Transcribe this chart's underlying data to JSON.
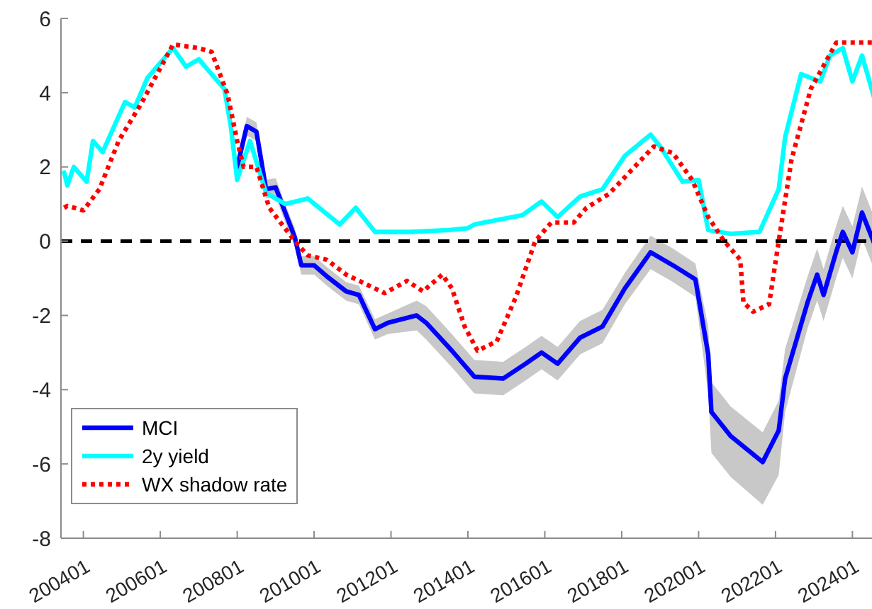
{
  "chart_data": {
    "type": "line",
    "xlim": [
      "2003-06",
      "2024-08"
    ],
    "ylim": [
      -8,
      6
    ],
    "yticks": [
      -8,
      -6,
      -4,
      -2,
      0,
      2,
      4,
      6
    ],
    "xticks": [
      {
        "value": "2004-01",
        "label": "200401"
      },
      {
        "value": "2006-01",
        "label": "200601"
      },
      {
        "value": "2008-01",
        "label": "200801"
      },
      {
        "value": "2010-01",
        "label": "201001"
      },
      {
        "value": "2012-01",
        "label": "201201"
      },
      {
        "value": "2014-01",
        "label": "201401"
      },
      {
        "value": "2016-01",
        "label": "201601"
      },
      {
        "value": "2018-01",
        "label": "201801"
      },
      {
        "value": "2020-01",
        "label": "202001"
      },
      {
        "value": "2022-01",
        "label": "202201"
      },
      {
        "value": "2024-01",
        "label": "202401"
      }
    ],
    "legend": "bottom left",
    "marker": "none",
    "ref_lines": [
      {
        "axis": "y",
        "value": 0,
        "color": "#000000",
        "line_style": "dashed"
      }
    ],
    "series": [
      {
        "name": "MCI",
        "color": "#0000ff",
        "line_style": "solid",
        "x": [
          "2008-01",
          "2008-04",
          "2008-07",
          "2008-10",
          "2009-01",
          "2009-04",
          "2009-07",
          "2009-09",
          "2010-01",
          "2010-05",
          "2010-11",
          "2011-03",
          "2011-08",
          "2011-12",
          "2012-09",
          "2012-12",
          "2013-08",
          "2014-03",
          "2014-12",
          "2015-07",
          "2015-12",
          "2016-05",
          "2016-12",
          "2017-07",
          "2018-02",
          "2018-10",
          "2019-05",
          "2019-12",
          "2020-04",
          "2020-05",
          "2020-11",
          "2021-09",
          "2022-02",
          "2022-04",
          "2022-11",
          "2023-02",
          "2023-04",
          "2023-08",
          "2023-10",
          "2024-01",
          "2024-04",
          "2024-08"
        ],
        "values": [
          2.0,
          3.1,
          2.95,
          1.4,
          1.45,
          0.77,
          0.1,
          -0.65,
          -0.65,
          -0.95,
          -1.35,
          -1.45,
          -2.37,
          -2.2,
          -2.0,
          -2.2,
          -2.95,
          -3.65,
          -3.7,
          -3.3,
          -3.0,
          -3.3,
          -2.6,
          -2.3,
          -1.27,
          -0.3,
          -0.65,
          -1.03,
          -3.05,
          -4.6,
          -5.25,
          -5.95,
          -5.1,
          -3.7,
          -1.65,
          -0.9,
          -1.45,
          -0.27,
          0.25,
          -0.3,
          0.77,
          -0.1
        ],
        "lower": [
          1.8,
          2.85,
          2.7,
          1.15,
          1.2,
          0.5,
          -0.15,
          -0.9,
          -0.9,
          -1.2,
          -1.6,
          -1.7,
          -2.65,
          -2.5,
          -2.4,
          -2.65,
          -3.4,
          -4.1,
          -4.15,
          -3.75,
          -3.45,
          -3.75,
          -3.05,
          -2.75,
          -1.7,
          -0.75,
          -1.1,
          -1.5,
          -4.1,
          -5.7,
          -6.35,
          -7.1,
          -6.3,
          -4.6,
          -2.35,
          -1.6,
          -2.15,
          -0.97,
          -0.45,
          -1.0,
          0.07,
          -0.8
        ],
        "upper": [
          2.2,
          3.35,
          3.2,
          1.65,
          1.7,
          1.0,
          0.35,
          -0.4,
          -0.4,
          -0.7,
          -1.1,
          -1.2,
          -2.1,
          -1.95,
          -1.6,
          -1.75,
          -2.5,
          -3.2,
          -3.25,
          -2.85,
          -2.55,
          -2.85,
          -2.15,
          -1.85,
          -0.85,
          0.15,
          -0.2,
          -0.6,
          -2.3,
          -3.8,
          -4.45,
          -5.15,
          -4.3,
          -2.9,
          -0.95,
          -0.2,
          -0.75,
          0.43,
          0.95,
          0.4,
          1.47,
          0.6
        ]
      },
      {
        "name": "2y yield",
        "color": "#00ffff",
        "line_style": "solid",
        "x": [
          "2003-07",
          "2003-08",
          "2003-10",
          "2004-02",
          "2004-04",
          "2004-07",
          "2005-02",
          "2005-05",
          "2005-09",
          "2006-05",
          "2006-09",
          "2007-01",
          "2007-04",
          "2007-09",
          "2007-11",
          "2008-01",
          "2008-05",
          "2008-10",
          "2009-04",
          "2009-11",
          "2010-09",
          "2011-02",
          "2011-08",
          "2012-07",
          "2013-07",
          "2014-01",
          "2014-03",
          "2015-06",
          "2015-12",
          "2016-05",
          "2016-12",
          "2017-07",
          "2018-02",
          "2018-10",
          "2019-01",
          "2019-08",
          "2020-01",
          "2020-04",
          "2020-11",
          "2021-08",
          "2022-02",
          "2022-04",
          "2022-09",
          "2023-03",
          "2023-06",
          "2023-10",
          "2024-01",
          "2024-04",
          "2024-08"
        ],
        "values": [
          1.85,
          1.5,
          2.0,
          1.6,
          2.7,
          2.4,
          3.75,
          3.6,
          4.4,
          5.2,
          4.7,
          4.9,
          4.6,
          4.1,
          3.1,
          1.65,
          2.7,
          1.3,
          1.0,
          1.15,
          0.45,
          0.9,
          0.25,
          0.25,
          0.3,
          0.35,
          0.45,
          0.7,
          1.07,
          0.65,
          1.2,
          1.4,
          2.3,
          2.87,
          2.55,
          1.6,
          1.65,
          0.3,
          0.2,
          0.25,
          1.4,
          2.8,
          4.5,
          4.3,
          5.0,
          5.2,
          4.3,
          5.0,
          3.8
        ]
      },
      {
        "name": "WX shadow rate",
        "color": "#ff0000",
        "line_style": "dotted",
        "x": [
          "2003-07",
          "2003-08",
          "2004-01",
          "2004-06",
          "2004-12",
          "2005-07",
          "2006-05",
          "2007-01",
          "2007-05",
          "2007-10",
          "2008-01",
          "2008-03",
          "2008-07",
          "2008-11",
          "2009-07",
          "2009-11",
          "2010-05",
          "2010-11",
          "2011-05",
          "2011-11",
          "2012-06",
          "2012-11",
          "2013-05",
          "2013-08",
          "2013-12",
          "2014-04",
          "2014-10",
          "2015-04",
          "2015-10",
          "2016-03",
          "2016-10",
          "2017-02",
          "2017-09",
          "2018-05",
          "2018-11",
          "2019-05",
          "2019-11",
          "2020-04",
          "2020-09",
          "2021-02",
          "2021-03",
          "2021-06",
          "2021-11",
          "2022-02",
          "2022-06",
          "2022-12",
          "2023-08",
          "2024-08"
        ],
        "values": [
          0.9,
          0.95,
          0.83,
          1.4,
          2.7,
          3.7,
          5.3,
          5.2,
          5.1,
          3.95,
          2.7,
          2.0,
          2.0,
          0.9,
          0,
          -0.38,
          -0.5,
          -0.9,
          -1.15,
          -1.4,
          -1.07,
          -1.35,
          -0.9,
          -1.27,
          -2.3,
          -2.95,
          -2.7,
          -1.5,
          0,
          0.5,
          0.5,
          0.9,
          1.27,
          2.0,
          2.55,
          2.37,
          1.65,
          0.65,
          0,
          -0.5,
          -1.65,
          -1.9,
          -1.7,
          0,
          2.2,
          4.1,
          5.35,
          5.35
        ]
      }
    ]
  }
}
